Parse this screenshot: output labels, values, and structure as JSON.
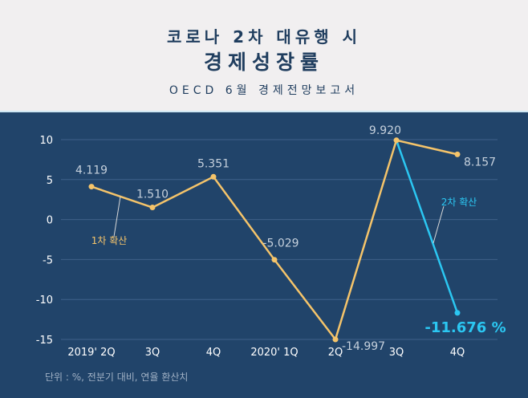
{
  "header": {
    "title_line1": "코로나 2차 대유행 시",
    "title_line2": "경제성장률",
    "subtitle": "OECD 6월 경제전망보고서"
  },
  "footnote": "단위 : %, 전분기 대비, 연율 환산치",
  "colors": {
    "background": "#21446a",
    "series_line": "#f5c46a",
    "forecast_line": "#2bc7f2",
    "header_bg": "#f1eff0"
  },
  "chart_data": {
    "type": "line",
    "categories": [
      "2019' 2Q",
      "3Q",
      "4Q",
      "2020' 1Q",
      "2Q",
      "3Q",
      "4Q"
    ],
    "ylim": [
      -15,
      10
    ],
    "yticks": [
      "10",
      "5",
      "0",
      "-5",
      "-10",
      "-15"
    ],
    "grid": true,
    "series": [
      {
        "values": [
          4.119,
          1.51,
          5.351,
          -5.029,
          -14.997,
          9.92,
          8.157
        ],
        "labels": [
          "4.119",
          "1.510",
          "5.351",
          "-5.029",
          "-14.997",
          "9.920",
          "8.157"
        ]
      },
      {
        "from_index": 5,
        "values": [
          null,
          null,
          null,
          null,
          null,
          9.92,
          -11.676
        ],
        "label": "-11.676 %"
      }
    ],
    "annotations": [
      "1차 확산",
      "2차 확산"
    ]
  }
}
